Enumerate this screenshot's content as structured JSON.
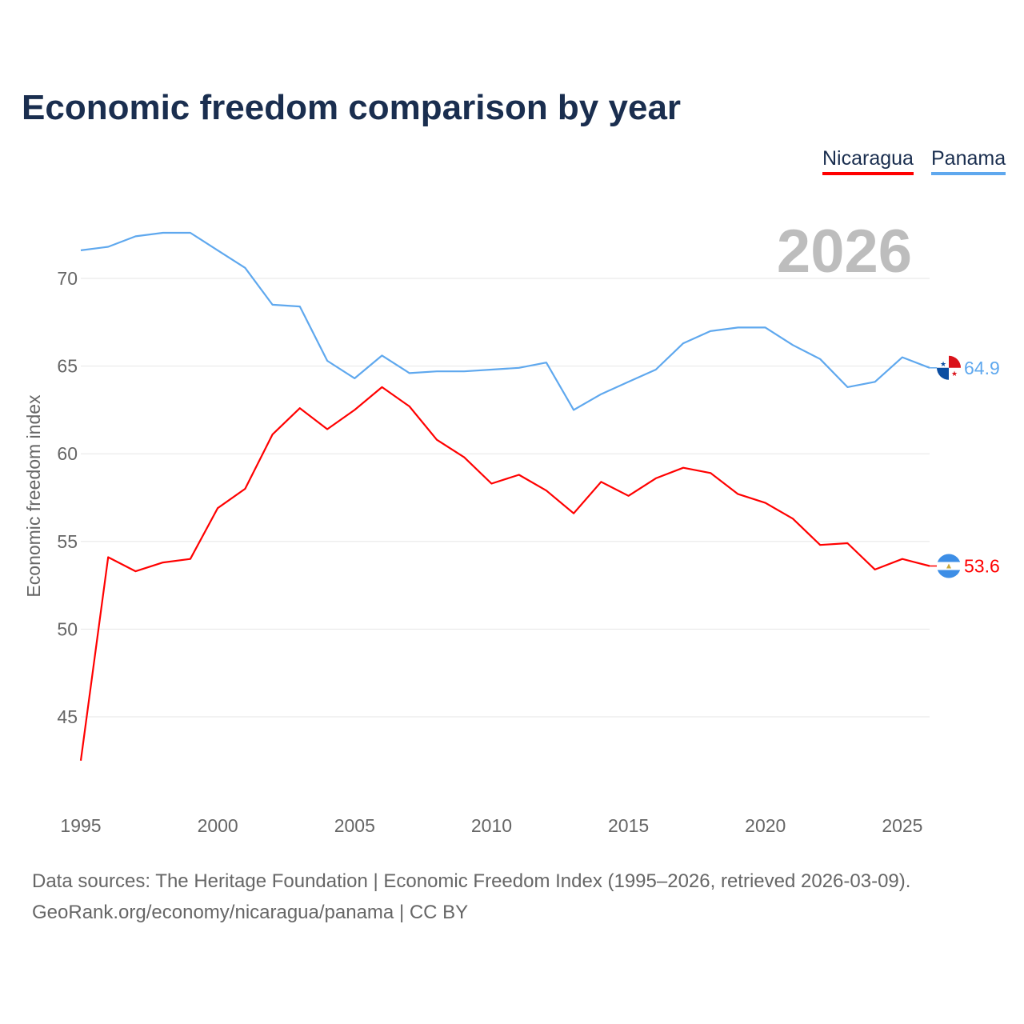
{
  "title": "Economic freedom comparison by year",
  "chart_data": {
    "type": "line",
    "title": "Economic freedom comparison by year",
    "xlabel": "",
    "ylabel": "Economic freedom index",
    "x": [
      1995,
      1996,
      1997,
      1998,
      1999,
      2000,
      2001,
      2002,
      2003,
      2004,
      2005,
      2006,
      2007,
      2008,
      2009,
      2010,
      2011,
      2012,
      2013,
      2014,
      2015,
      2016,
      2017,
      2018,
      2019,
      2020,
      2021,
      2022,
      2023,
      2024,
      2025,
      2026
    ],
    "xticks": [
      "1995",
      "2000",
      "2005",
      "2010",
      "2015",
      "2020",
      "2025"
    ],
    "yticks": [
      "45",
      "50",
      "55",
      "60",
      "65",
      "70"
    ],
    "xlim": [
      1995,
      2026
    ],
    "ylim": [
      41.8,
      73.4
    ],
    "grid": true,
    "legend_placement": "top-right",
    "year_label": "2026",
    "series": [
      {
        "name": "Nicaragua",
        "color": "#ff0000",
        "end_label": "53.6",
        "values": [
          42.5,
          54.1,
          53.3,
          53.8,
          54.0,
          56.9,
          58.0,
          61.1,
          62.6,
          61.4,
          62.5,
          63.8,
          62.7,
          60.8,
          59.8,
          58.3,
          58.8,
          57.9,
          56.6,
          58.4,
          57.6,
          58.6,
          59.2,
          58.9,
          57.7,
          57.2,
          56.3,
          54.8,
          54.9,
          53.4,
          54.0,
          53.6
        ]
      },
      {
        "name": "Panama",
        "color": "#5fa8ee",
        "end_label": "64.9",
        "values": [
          71.6,
          71.8,
          72.4,
          72.6,
          72.6,
          71.6,
          70.6,
          68.5,
          68.4,
          65.3,
          64.3,
          65.6,
          64.6,
          64.7,
          64.7,
          64.8,
          64.9,
          65.2,
          62.5,
          63.4,
          64.1,
          64.8,
          66.3,
          67.0,
          67.2,
          67.2,
          66.2,
          65.4,
          63.8,
          64.1,
          65.5,
          64.9
        ]
      }
    ]
  },
  "footer": {
    "line1": "Data sources: The Heritage Foundation | Economic Freedom Index (1995–2026, retrieved 2026-03-09).",
    "line2": "GeoRank.org/economy/nicaragua/panama | CC BY"
  }
}
